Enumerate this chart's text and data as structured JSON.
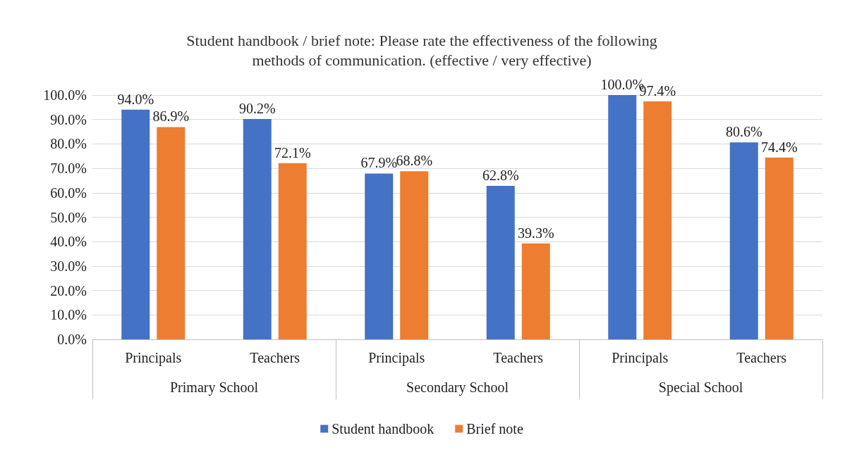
{
  "chart_data": {
    "type": "bar",
    "title": "Student handbook / brief note: Please rate the effectiveness of the following\nmethods of communication. (effective / very effective)",
    "categories": [
      "Principals",
      "Teachers",
      "Principals",
      "Teachers",
      "Principals",
      "Teachers"
    ],
    "annotations": [
      "Primary School",
      "Secondary School",
      "Special School"
    ],
    "series": [
      {
        "name": "Student handbook",
        "color": "#4472c4",
        "values": [
          94.0,
          90.2,
          67.9,
          62.8,
          100.0,
          80.6
        ],
        "value_labels": [
          "94.0%",
          "90.2%",
          "67.9%",
          "62.8%",
          "100.0%",
          "80.6%"
        ]
      },
      {
        "name": "Brief note",
        "color": "#ed7d31",
        "values": [
          86.9,
          72.1,
          68.8,
          39.3,
          97.4,
          74.4
        ],
        "value_labels": [
          "86.9%",
          "72.1%",
          "68.8%",
          "39.3%",
          "97.4%",
          "74.4%"
        ]
      }
    ],
    "ylim": [
      0,
      100
    ],
    "yticks": [
      {
        "value": 0,
        "label": "0.0%"
      },
      {
        "value": 10,
        "label": "10.0%"
      },
      {
        "value": 20,
        "label": "20.0%"
      },
      {
        "value": 30,
        "label": "30.0%"
      },
      {
        "value": 40,
        "label": "40.0%"
      },
      {
        "value": 50,
        "label": "50.0%"
      },
      {
        "value": 60,
        "label": "60.0%"
      },
      {
        "value": 70,
        "label": "70.0%"
      },
      {
        "value": 80,
        "label": "80.0%"
      },
      {
        "value": 90,
        "label": "90.0%"
      },
      {
        "value": 100,
        "label": "100.0%"
      }
    ],
    "grid": "y",
    "legend": "bottom"
  }
}
